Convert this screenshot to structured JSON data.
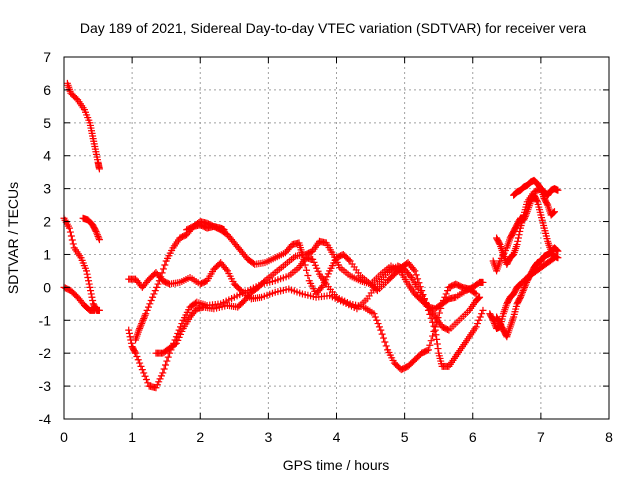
{
  "chart_data": {
    "type": "scatter",
    "title": "Day 189 of 2021, Sidereal Day-to-day VTEC variation (SDTVAR) for receiver vera",
    "xlabel": "GPS time / hours",
    "ylabel": "SDTVAR / TECUs",
    "xlim": [
      0,
      8
    ],
    "ylim": [
      -4,
      7
    ],
    "xticks": [
      "0",
      "1",
      "2",
      "3",
      "4",
      "5",
      "6",
      "7",
      "8"
    ],
    "yticks": [
      "-4",
      "-3",
      "-2",
      "-1",
      "0",
      "1",
      "2",
      "3",
      "4",
      "5",
      "6",
      "7"
    ],
    "grid": true,
    "marker": "+",
    "color": "#ff0000",
    "series": [
      {
        "name": "track-1",
        "points": [
          [
            0.05,
            6.2
          ],
          [
            0.1,
            5.9
          ],
          [
            0.2,
            5.7
          ],
          [
            0.3,
            5.4
          ],
          [
            0.38,
            5.0
          ],
          [
            0.42,
            4.6
          ],
          [
            0.46,
            4.2
          ],
          [
            0.5,
            3.8
          ],
          [
            0.52,
            3.6
          ]
        ]
      },
      {
        "name": "track-2",
        "points": [
          [
            0.0,
            2.1
          ],
          [
            0.08,
            1.8
          ],
          [
            0.15,
            1.2
          ],
          [
            0.25,
            0.9
          ],
          [
            0.33,
            0.5
          ],
          [
            0.38,
            0.0
          ],
          [
            0.43,
            -0.5
          ],
          [
            0.48,
            -0.7
          ],
          [
            0.52,
            -0.7
          ]
        ]
      },
      {
        "name": "track-3",
        "points": [
          [
            0.0,
            0.0
          ],
          [
            0.1,
            -0.1
          ],
          [
            0.2,
            -0.3
          ],
          [
            0.3,
            -0.55
          ],
          [
            0.38,
            -0.7
          ],
          [
            0.45,
            -0.7
          ]
        ]
      },
      {
        "name": "track-4",
        "points": [
          [
            0.28,
            2.1
          ],
          [
            0.35,
            2.05
          ],
          [
            0.42,
            1.9
          ],
          [
            0.47,
            1.7
          ],
          [
            0.52,
            1.45
          ]
        ]
      },
      {
        "name": "track-5",
        "points": [
          [
            0.95,
            -1.3
          ],
          [
            1.0,
            -1.8
          ],
          [
            1.05,
            -2.0
          ],
          [
            1.15,
            -2.5
          ],
          [
            1.25,
            -3.0
          ],
          [
            1.35,
            -3.05
          ],
          [
            1.45,
            -2.6
          ],
          [
            1.55,
            -2.0
          ],
          [
            1.65,
            -1.5
          ],
          [
            1.75,
            -1.0
          ],
          [
            1.85,
            -0.6
          ],
          [
            1.95,
            -0.45
          ],
          [
            2.1,
            -0.55
          ],
          [
            2.3,
            -0.5
          ],
          [
            2.5,
            -0.3
          ],
          [
            2.7,
            -0.1
          ],
          [
            2.9,
            0.1
          ],
          [
            3.1,
            0.2
          ],
          [
            3.3,
            0.35
          ],
          [
            3.45,
            0.6
          ],
          [
            3.55,
            0.9
          ],
          [
            3.65,
            0.85
          ],
          [
            3.75,
            0.4
          ],
          [
            3.85,
            0.1
          ],
          [
            4.0,
            -0.3
          ],
          [
            4.2,
            -0.5
          ],
          [
            4.4,
            -0.6
          ],
          [
            4.55,
            -0.8
          ],
          [
            4.65,
            -1.3
          ],
          [
            4.75,
            -1.9
          ],
          [
            4.85,
            -2.3
          ],
          [
            4.95,
            -2.5
          ],
          [
            5.05,
            -2.4
          ],
          [
            5.15,
            -2.2
          ],
          [
            5.25,
            -2.0
          ],
          [
            5.35,
            -1.9
          ],
          [
            5.45,
            -1.2
          ],
          [
            5.55,
            -0.5
          ],
          [
            5.65,
            0.0
          ],
          [
            5.75,
            0.1
          ],
          [
            5.85,
            0.0
          ],
          [
            5.95,
            -0.05
          ],
          [
            6.05,
            -0.2
          ]
        ]
      },
      {
        "name": "track-6",
        "points": [
          [
            0.95,
            0.25
          ],
          [
            1.05,
            0.25
          ],
          [
            1.15,
            0.0
          ],
          [
            1.25,
            0.25
          ],
          [
            1.35,
            0.45
          ],
          [
            1.45,
            0.2
          ],
          [
            1.55,
            0.1
          ],
          [
            1.7,
            0.15
          ],
          [
            1.85,
            0.3
          ],
          [
            2.0,
            0.1
          ],
          [
            2.1,
            0.2
          ],
          [
            2.2,
            0.55
          ],
          [
            2.3,
            0.75
          ],
          [
            2.4,
            0.5
          ],
          [
            2.5,
            0.1
          ],
          [
            2.6,
            -0.1
          ],
          [
            2.75,
            -0.35
          ],
          [
            2.9,
            -0.3
          ],
          [
            3.1,
            -0.15
          ],
          [
            3.3,
            -0.05
          ],
          [
            3.5,
            -0.2
          ],
          [
            3.7,
            -0.3
          ],
          [
            3.9,
            -0.25
          ],
          [
            4.1,
            -0.45
          ],
          [
            4.3,
            -0.65
          ],
          [
            4.45,
            -0.35
          ],
          [
            4.6,
            0.1
          ],
          [
            4.75,
            0.45
          ],
          [
            4.9,
            0.65
          ],
          [
            5.0,
            0.55
          ],
          [
            5.1,
            0.3
          ],
          [
            5.2,
            -0.05
          ],
          [
            5.35,
            -0.6
          ],
          [
            5.45,
            -0.9
          ],
          [
            5.55,
            -1.2
          ],
          [
            5.65,
            -1.3
          ],
          [
            5.8,
            -1.0
          ],
          [
            5.95,
            -0.7
          ],
          [
            6.05,
            -0.4
          ],
          [
            6.1,
            -0.3
          ]
        ]
      },
      {
        "name": "track-7",
        "points": [
          [
            1.05,
            -1.6
          ],
          [
            1.1,
            -1.3
          ],
          [
            1.15,
            -1.05
          ],
          [
            1.2,
            -0.8
          ],
          [
            1.3,
            -0.3
          ],
          [
            1.4,
            0.2
          ],
          [
            1.5,
            0.8
          ],
          [
            1.6,
            1.2
          ],
          [
            1.7,
            1.5
          ],
          [
            1.8,
            1.6
          ],
          [
            1.9,
            1.85
          ],
          [
            2.0,
            2.0
          ],
          [
            2.1,
            1.95
          ],
          [
            2.2,
            1.85
          ],
          [
            2.3,
            1.75
          ],
          [
            2.4,
            1.6
          ],
          [
            2.5,
            1.35
          ],
          [
            2.6,
            1.1
          ],
          [
            2.7,
            0.85
          ],
          [
            2.8,
            0.7
          ],
          [
            2.95,
            0.75
          ],
          [
            3.1,
            0.9
          ],
          [
            3.25,
            1.05
          ],
          [
            3.35,
            1.3
          ],
          [
            3.45,
            1.35
          ],
          [
            3.5,
            1.0
          ],
          [
            3.6,
            0.2
          ],
          [
            3.7,
            -0.2
          ],
          [
            3.8,
            0.05
          ],
          [
            3.9,
            0.5
          ],
          [
            4.0,
            0.9
          ],
          [
            4.1,
            1.0
          ],
          [
            4.2,
            0.8
          ],
          [
            4.35,
            0.35
          ],
          [
            4.5,
            0.1
          ],
          [
            4.65,
            0.4
          ],
          [
            4.8,
            0.65
          ],
          [
            4.95,
            0.45
          ],
          [
            5.05,
            0.1
          ],
          [
            5.15,
            -0.2
          ],
          [
            5.25,
            -0.4
          ],
          [
            5.35,
            -0.6
          ],
          [
            5.45,
            -0.65
          ],
          [
            5.55,
            -0.5
          ],
          [
            5.65,
            -0.35
          ],
          [
            5.75,
            -0.3
          ],
          [
            5.9,
            -0.1
          ],
          [
            6.0,
            0.0
          ],
          [
            6.1,
            0.15
          ],
          [
            6.15,
            0.15
          ]
        ]
      },
      {
        "name": "track-8",
        "points": [
          [
            1.35,
            -2.0
          ],
          [
            1.45,
            -2.0
          ],
          [
            1.55,
            -1.85
          ],
          [
            1.65,
            -1.7
          ],
          [
            1.75,
            -1.25
          ],
          [
            1.85,
            -0.9
          ],
          [
            1.95,
            -0.65
          ],
          [
            2.05,
            -0.6
          ],
          [
            2.2,
            -0.65
          ],
          [
            2.4,
            -0.55
          ],
          [
            2.55,
            -0.6
          ],
          [
            2.65,
            -0.4
          ],
          [
            2.75,
            -0.15
          ],
          [
            2.85,
            0.0
          ],
          [
            2.95,
            0.2
          ],
          [
            3.1,
            0.45
          ],
          [
            3.25,
            0.7
          ],
          [
            3.4,
            0.95
          ],
          [
            3.55,
            1.0
          ],
          [
            3.65,
            1.1
          ],
          [
            3.75,
            1.4
          ],
          [
            3.85,
            1.35
          ],
          [
            3.95,
            1.0
          ],
          [
            4.05,
            0.6
          ],
          [
            4.2,
            0.35
          ],
          [
            4.35,
            0.2
          ],
          [
            4.5,
            0.1
          ],
          [
            4.6,
            -0.1
          ],
          [
            4.75,
            0.2
          ],
          [
            4.85,
            0.4
          ],
          [
            4.95,
            0.6
          ],
          [
            5.05,
            0.75
          ],
          [
            5.15,
            0.5
          ],
          [
            5.25,
            -0.1
          ],
          [
            5.35,
            -0.7
          ],
          [
            5.45,
            -1.3
          ],
          [
            5.5,
            -2.0
          ],
          [
            5.55,
            -2.4
          ],
          [
            5.65,
            -2.4
          ],
          [
            5.75,
            -2.1
          ],
          [
            5.85,
            -1.8
          ],
          [
            5.95,
            -1.5
          ],
          [
            6.05,
            -1.2
          ],
          [
            6.15,
            -0.7
          ]
        ]
      },
      {
        "name": "track-9",
        "points": [
          [
            1.8,
            1.75
          ],
          [
            1.9,
            1.85
          ],
          [
            2.0,
            1.9
          ],
          [
            2.1,
            1.8
          ],
          [
            2.2,
            1.85
          ],
          [
            2.3,
            1.8
          ],
          [
            2.35,
            1.75
          ]
        ]
      },
      {
        "name": "track-10",
        "points": [
          [
            6.35,
            1.5
          ],
          [
            6.4,
            1.3
          ],
          [
            6.45,
            1.0
          ],
          [
            6.5,
            0.7
          ],
          [
            6.55,
            0.9
          ],
          [
            6.6,
            1.0
          ],
          [
            6.65,
            1.3
          ],
          [
            6.7,
            1.8
          ],
          [
            6.75,
            2.2
          ],
          [
            6.8,
            2.6
          ],
          [
            6.9,
            2.9
          ],
          [
            7.0,
            3.0
          ],
          [
            7.05,
            2.7
          ],
          [
            7.1,
            2.5
          ],
          [
            7.15,
            2.2
          ],
          [
            7.2,
            2.3
          ]
        ]
      },
      {
        "name": "track-11",
        "points": [
          [
            6.3,
            0.8
          ],
          [
            6.35,
            0.5
          ],
          [
            6.4,
            0.8
          ],
          [
            6.5,
            1.2
          ],
          [
            6.55,
            1.5
          ],
          [
            6.6,
            1.7
          ],
          [
            6.65,
            1.9
          ],
          [
            6.7,
            2.1
          ],
          [
            6.75,
            2.05
          ],
          [
            6.8,
            2.3
          ],
          [
            6.85,
            2.6
          ],
          [
            6.9,
            2.8
          ],
          [
            6.95,
            2.6
          ],
          [
            7.0,
            2.2
          ],
          [
            7.05,
            1.8
          ],
          [
            7.1,
            1.4
          ],
          [
            7.15,
            1.1
          ],
          [
            7.2,
            1.2
          ],
          [
            7.25,
            1.1
          ]
        ]
      },
      {
        "name": "track-12",
        "points": [
          [
            6.35,
            -0.9
          ],
          [
            6.4,
            -1.1
          ],
          [
            6.45,
            -1.3
          ],
          [
            6.5,
            -1.5
          ],
          [
            6.55,
            -1.2
          ],
          [
            6.6,
            -0.9
          ],
          [
            6.65,
            -0.5
          ],
          [
            6.7,
            -0.3
          ],
          [
            6.75,
            -0.05
          ],
          [
            6.8,
            0.2
          ],
          [
            6.85,
            0.4
          ],
          [
            6.9,
            0.6
          ],
          [
            6.95,
            0.75
          ],
          [
            7.0,
            0.8
          ],
          [
            7.05,
            0.95
          ],
          [
            7.1,
            1.0
          ],
          [
            7.15,
            1.05
          ],
          [
            7.2,
            0.95
          ],
          [
            7.25,
            0.9
          ]
        ]
      },
      {
        "name": "track-13",
        "points": [
          [
            6.6,
            2.8
          ],
          [
            6.65,
            2.9
          ],
          [
            6.7,
            2.95
          ],
          [
            6.75,
            3.05
          ],
          [
            6.8,
            3.1
          ],
          [
            6.85,
            3.2
          ],
          [
            6.9,
            3.25
          ],
          [
            6.95,
            3.15
          ],
          [
            7.0,
            3.0
          ],
          [
            7.05,
            2.9
          ],
          [
            7.1,
            2.8
          ],
          [
            7.15,
            2.95
          ],
          [
            7.2,
            3.0
          ],
          [
            7.25,
            2.95
          ]
        ]
      },
      {
        "name": "track-14",
        "points": [
          [
            6.25,
            -0.8
          ],
          [
            6.3,
            -1.0
          ],
          [
            6.35,
            -1.25
          ],
          [
            6.4,
            -1.2
          ],
          [
            6.45,
            -0.8
          ],
          [
            6.5,
            -0.5
          ],
          [
            6.55,
            -0.3
          ],
          [
            6.6,
            -0.2
          ],
          [
            6.65,
            0.0
          ],
          [
            6.7,
            0.1
          ],
          [
            6.8,
            0.3
          ],
          [
            6.9,
            0.45
          ],
          [
            7.0,
            0.6
          ],
          [
            7.1,
            0.75
          ],
          [
            7.2,
            0.9
          ]
        ]
      }
    ]
  }
}
